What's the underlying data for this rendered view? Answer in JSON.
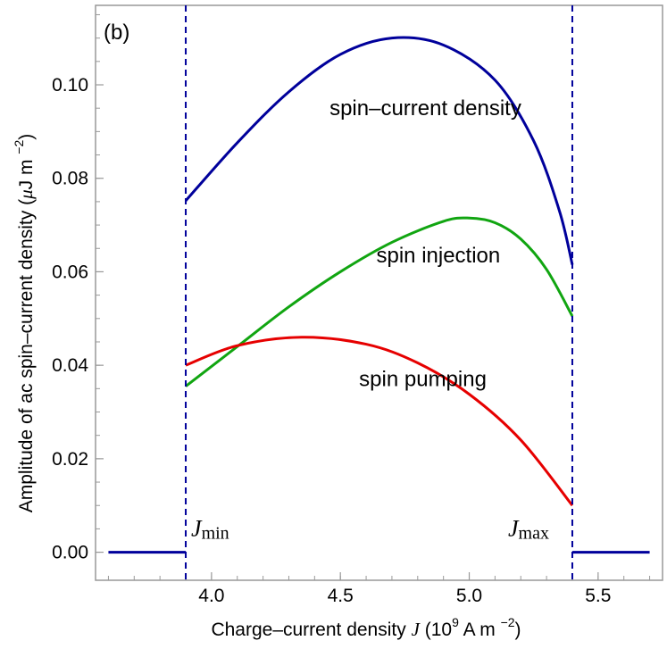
{
  "chart_data": {
    "type": "line",
    "panel_tag": "(b)",
    "xlabel": {
      "prefix": "Charge–current  density ",
      "symbol": "J",
      "unit_open": " (10",
      "unit_exp": "9",
      "unit_mid": " A m ",
      "unit_exp2": "−2",
      "unit_close": ")"
    },
    "ylabel": {
      "text": "Amplitude  of  ac  spin–current  density  (",
      "mu": "μ",
      "unit": "J m ",
      "unit_exp": "−2",
      "unit_close": ")"
    },
    "xlim": [
      3.55,
      5.75
    ],
    "ylim": [
      -0.006,
      0.117
    ],
    "x_ticks": [
      4.0,
      4.5,
      5.0,
      5.5
    ],
    "x_tick_labels": [
      "4.0",
      "4.5",
      "5.0",
      "5.5"
    ],
    "y_ticks": [
      0.0,
      0.02,
      0.04,
      0.06,
      0.08,
      0.1
    ],
    "y_tick_labels": [
      "0.00",
      "0.02",
      "0.04",
      "0.06",
      "0.08",
      "0.10"
    ],
    "vlines": [
      {
        "x": 3.9,
        "label": "J",
        "sub": "min"
      },
      {
        "x": 5.4,
        "label": "J",
        "sub": "max"
      }
    ],
    "series": [
      {
        "name": "spin–current density",
        "color": "#00009b",
        "segments": [
          {
            "x": [
              3.6,
              3.9
            ],
            "y": [
              0.0,
              0.0
            ]
          },
          {
            "x": [
              3.9,
              4.1,
              4.3,
              4.5,
              4.7,
              4.9,
              5.1,
              5.25,
              5.35,
              5.4
            ],
            "y": [
              0.0752,
              0.0876,
              0.0985,
              0.1065,
              0.11,
              0.1085,
              0.101,
              0.088,
              0.073,
              0.0615
            ]
          },
          {
            "x": [
              5.4,
              5.7
            ],
            "y": [
              0.0,
              0.0
            ]
          }
        ]
      },
      {
        "name": "spin injection",
        "color": "#11a511",
        "segments": [
          {
            "x": [
              3.9,
              4.1,
              4.3,
              4.5,
              4.7,
              4.9,
              5.0,
              5.1,
              5.2,
              5.3,
              5.4
            ],
            "y": [
              0.0355,
              0.044,
              0.0525,
              0.06,
              0.0663,
              0.0708,
              0.0715,
              0.0705,
              0.067,
              0.0605,
              0.0505
            ]
          }
        ]
      },
      {
        "name": "spin pumping",
        "color": "#e60000",
        "segments": [
          {
            "x": [
              3.9,
              4.1,
              4.35,
              4.6,
              4.8,
              5.0,
              5.2,
              5.4
            ],
            "y": [
              0.04,
              0.0442,
              0.046,
              0.0445,
              0.0405,
              0.0338,
              0.024,
              0.01
            ]
          }
        ]
      }
    ],
    "annotations": [
      {
        "text": "spin–current density",
        "x": 4.83,
        "y": 0.0935
      },
      {
        "text": "spin injection",
        "x": 4.88,
        "y": 0.062
      },
      {
        "text": "spin pumping",
        "x": 4.82,
        "y": 0.0355
      }
    ]
  }
}
